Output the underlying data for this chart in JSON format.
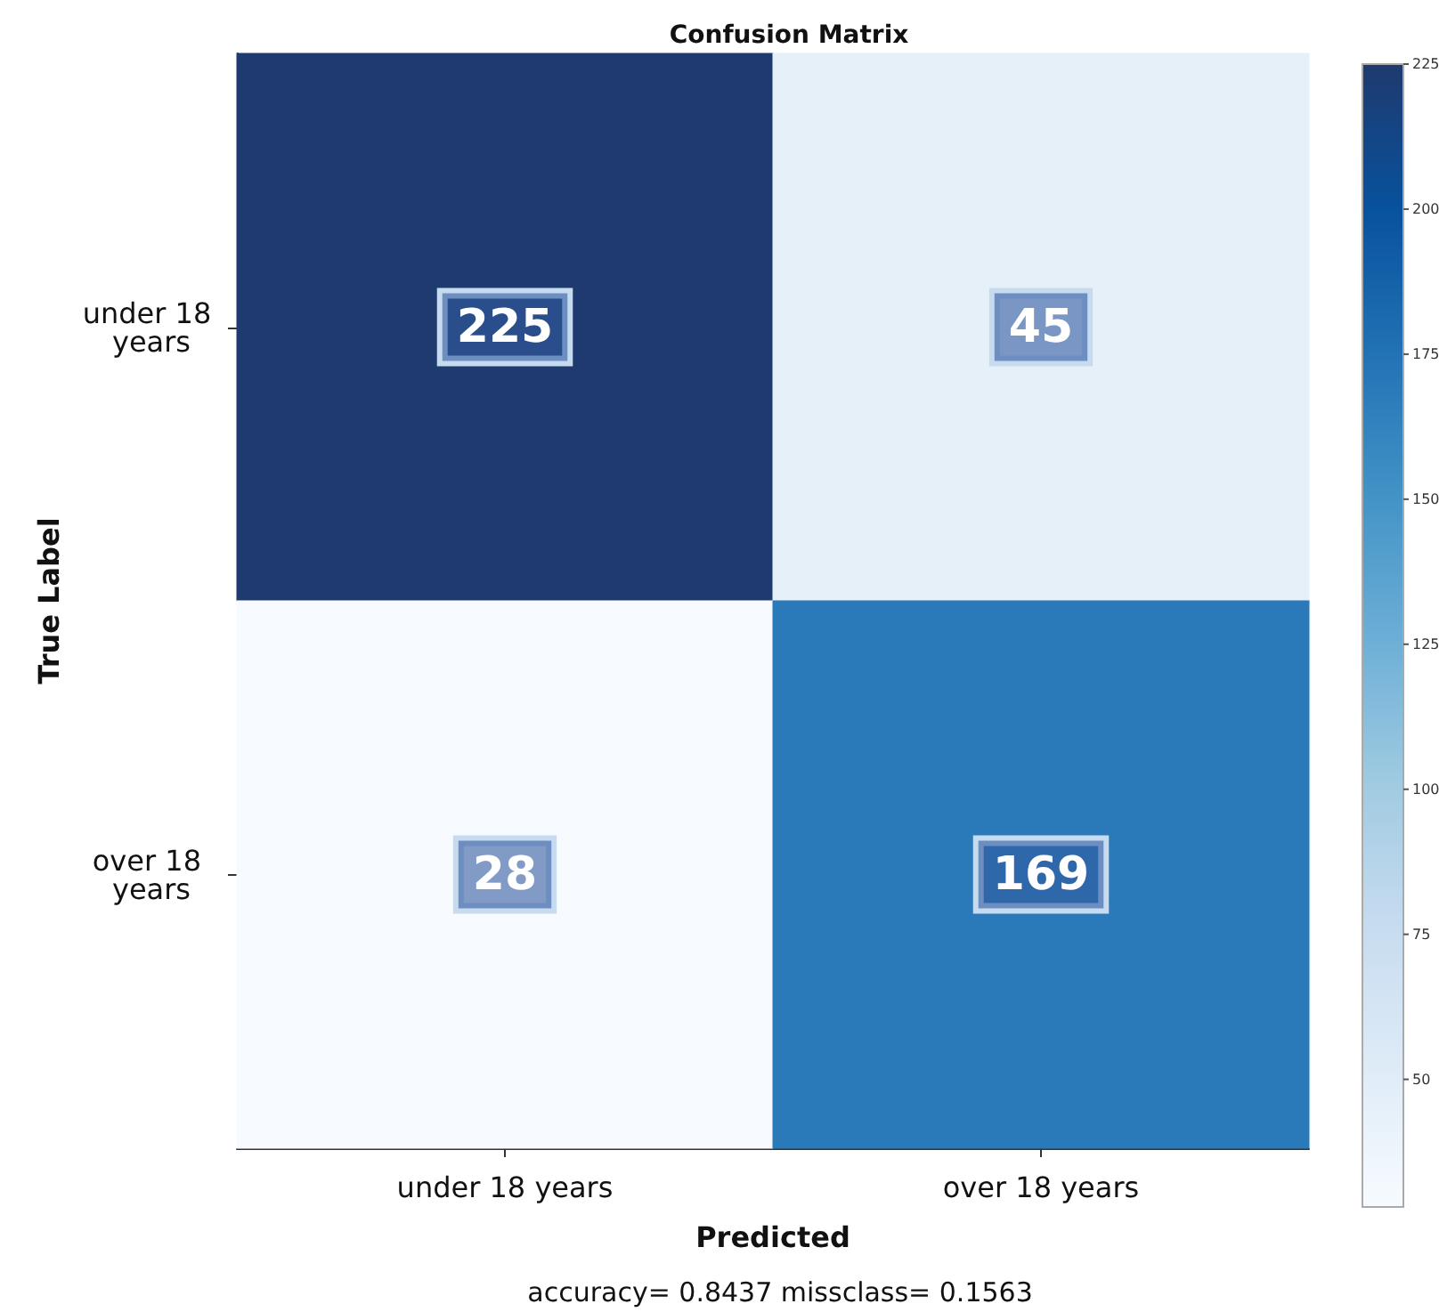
{
  "chart_data": {
    "type": "heatmap",
    "title": "Confusion Matrix",
    "xlabel": "Predicted",
    "ylabel": "True Label",
    "categories": [
      "under 18 years",
      "over 18 years"
    ],
    "y_categories": [
      "under 18 years",
      "over 18 years"
    ],
    "cells": [
      [
        225,
        45
      ],
      [
        28,
        169
      ]
    ],
    "data_labels": true,
    "clim": [
      28,
      225
    ],
    "cticks": [
      50,
      75,
      100,
      125,
      150,
      175,
      200,
      225
    ],
    "annotations": [
      "accuracy= 0.8437 missclass= 0.1563"
    ]
  }
}
